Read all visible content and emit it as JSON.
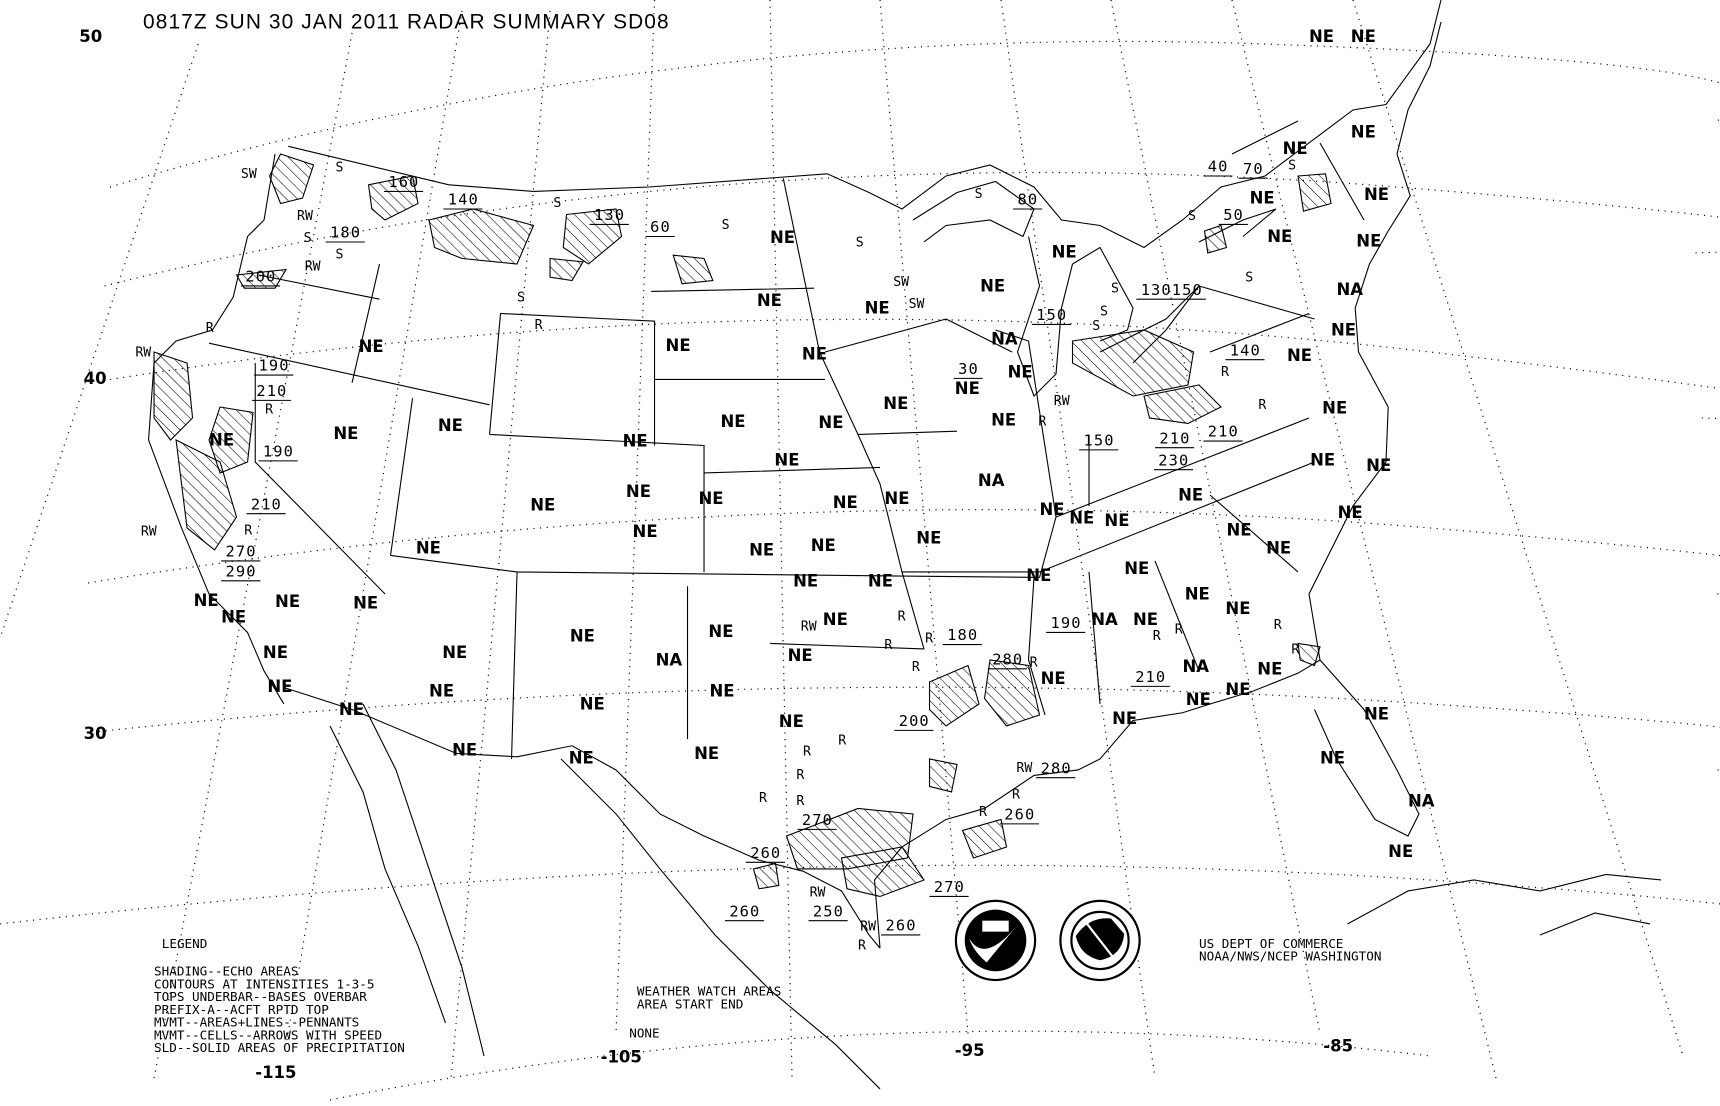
{
  "title": "0817Z SUN 30 JAN 2011 RADAR SUMMARY SD08",
  "lat_labels": [
    "50",
    "40",
    "30"
  ],
  "lon_labels": [
    "-115",
    "-105",
    "-95",
    "-85"
  ],
  "coverage_labels": [
    "NE",
    "NE",
    "NE",
    "NE",
    "NE",
    "NE",
    "NE",
    "NA",
    "NE",
    "NE",
    "NE",
    "NE",
    "NE",
    "NE",
    "NE",
    "NA",
    "NE",
    "NE",
    "NE",
    "NE",
    "NE",
    "NE",
    "NE",
    "NE",
    "NE",
    "NE",
    "NE",
    "NE",
    "NE",
    "NA",
    "NE",
    "NE",
    "NE",
    "NE",
    "NE",
    "NE",
    "NE",
    "NE",
    "NE",
    "NE",
    "NE",
    "NE",
    "NE",
    "NE",
    "NE",
    "NE",
    "NE",
    "NE",
    "NE",
    "NE",
    "NE",
    "NE",
    "NE",
    "NE",
    "NE",
    "NE",
    "NE",
    "NE",
    "NE",
    "NE",
    "NA",
    "NE",
    "NE",
    "NE",
    "NE",
    "NE",
    "NE",
    "NE",
    "NE",
    "NE",
    "NE",
    "NE",
    "NE",
    "NE",
    "NE",
    "NE",
    "NE",
    "NA",
    "NE",
    "NE",
    "NA",
    "NE",
    "NE",
    "NE",
    "NE",
    "NE",
    "NE",
    "NA",
    "NE",
    "NE"
  ],
  "precip_labels": [
    "S",
    "S",
    "S",
    "S",
    "S",
    "RW",
    "RW",
    "SW",
    "R",
    "RW",
    "R",
    "S",
    "SW",
    "SW",
    "S",
    "S",
    "S",
    "S",
    "S",
    "S",
    "S",
    "R",
    "R",
    "RW",
    "R",
    "R",
    "RW",
    "R",
    "R",
    "R",
    "R",
    "R",
    "R",
    "R",
    "R",
    "R",
    "R",
    "RW",
    "R",
    "R",
    "R",
    "R",
    "R",
    "R",
    "R",
    "R",
    "RW",
    "RW",
    "RW",
    "S"
  ],
  "top_labels": [
    "160",
    "140",
    "130",
    "60",
    "180",
    "200",
    "190",
    "210",
    "190",
    "210",
    "270",
    "290",
    "40",
    "70",
    "50",
    "130150",
    "150",
    "30",
    "140",
    "150",
    "210",
    "230",
    "210",
    "80",
    "190",
    "210",
    "180",
    "280",
    "200",
    "280",
    "260",
    "270",
    "260",
    "270",
    "250",
    "260",
    "260"
  ],
  "legend": {
    "heading": "LEGEND",
    "lines": [
      "SHADING--ECHO AREAS",
      "CONTOURS AT INTENSITIES 1-3-5",
      "TOPS UNDERBAR--BASES OVERBAR",
      "PREFIX-A--ACFT RPTD TOP",
      "MVMT--AREAS+LINES--PENNANTS",
      "MVMT--CELLS--ARROWS WITH SPEED",
      "SLD--SOLID AREAS OF PRECIPITATION"
    ]
  },
  "watch": {
    "heading": "WEATHER WATCH AREAS",
    "columns": "AREA   START  END",
    "value": "NONE"
  },
  "footer": {
    "line1": "US DEPT OF COMMERCE",
    "line2": "NOAA/NWS/NCEP WASHINGTON"
  },
  "logos": {
    "noaa": "NOAA",
    "nws": "NATIONAL WEATHER SERVICE"
  },
  "colors": {
    "ink": "#000000",
    "background": "#ffffff"
  }
}
